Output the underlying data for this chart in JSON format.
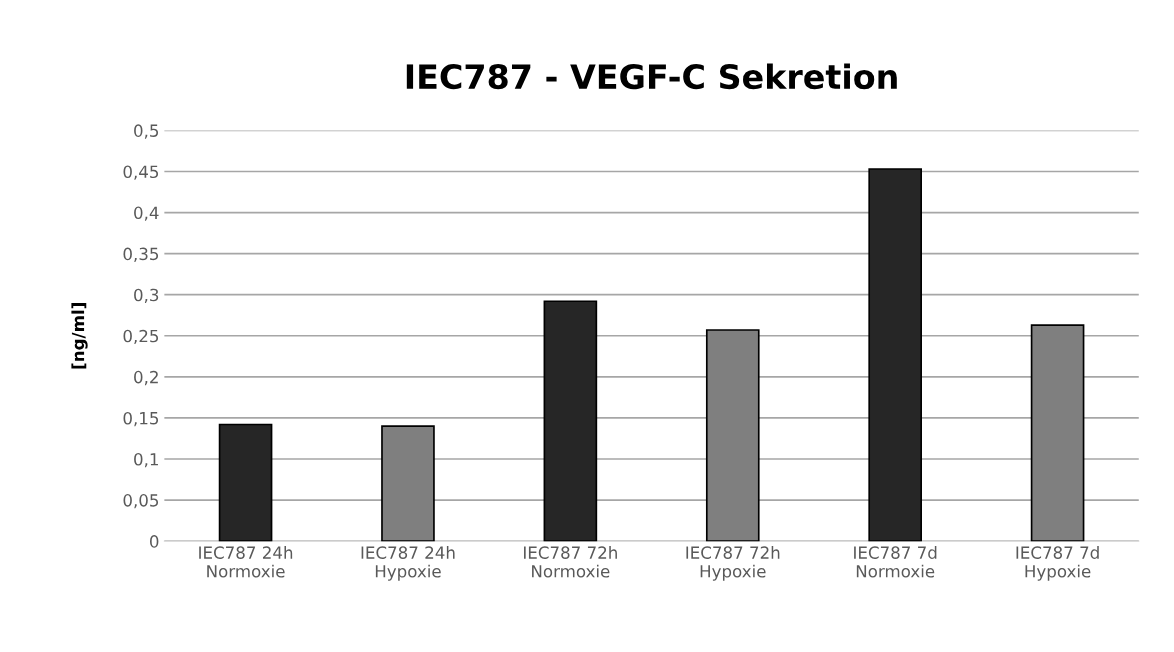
{
  "chart_data": {
    "type": "bar",
    "title": "IEC787 - VEGF-C Sekretion",
    "ylabel": "[ng/ml]",
    "categories": [
      "IEC787 24h\nNormoxie",
      "IEC787 24h\nHypoxie",
      "IEC787 72h\nNormoxie",
      "IEC787 72h\nHypoxie",
      "IEC787 7d\nNormoxie",
      "IEC787 7d\nHypoxie"
    ],
    "values": [
      0.142,
      0.14,
      0.292,
      0.257,
      0.453,
      0.263
    ],
    "colors": [
      "#262626",
      "#7f7f7f",
      "#262626",
      "#7f7f7f",
      "#262626",
      "#7f7f7f"
    ],
    "ylim": [
      0,
      0.5
    ],
    "yticks": [
      0,
      {
        "value": 0.05,
        "label": "0,05"
      },
      {
        "value": 0.1,
        "label": "0,1"
      },
      {
        "value": 0.15,
        "label": "0,15"
      },
      {
        "value": 0.2,
        "label": "0,2"
      },
      {
        "value": 0.25,
        "label": "0,25"
      },
      {
        "value": 0.3,
        "label": "0,3"
      },
      {
        "value": 0.35,
        "label": "0,35"
      },
      {
        "value": 0.4,
        "label": "0,4"
      },
      {
        "value": 0.45,
        "label": "0,45"
      },
      {
        "value": 0.5,
        "label": "0,5"
      }
    ],
    "grid": "y",
    "legend": false
  }
}
